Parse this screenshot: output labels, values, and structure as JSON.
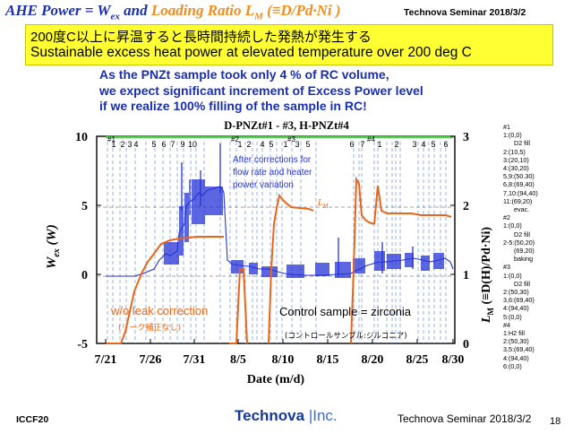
{
  "header": {
    "title_part1": "AHE Power = W",
    "title_sub1": "ex",
    "title_part2": " and ",
    "title_part3": "Loading Ratio L",
    "title_sub2": "M",
    "title_part4": " (≡D/Pd·Ni )",
    "seminar": "Technova Seminar 2018/3/2"
  },
  "banner": {
    "japanese": "200度C以上に昇温すると長時間持続した発熱が発生する",
    "english": "Sustainable excess heat power at elevated temperature over 200 deg C"
  },
  "note": {
    "line1": "As the PNZt sample took only 4 % of RC volume,",
    "line2": "we expect significant increment of Excess Power level",
    "line3": " if we realize 100% filling of the sample in RC!"
  },
  "chart_data": {
    "type": "line",
    "title": "D-PNZt#1 - #3, H-PNZt#4",
    "xlabel": "Date (m/d)",
    "ylabel_left": "Wex (W)",
    "ylabel_right": "LM (≡D(H)/Pd·Ni)",
    "x_ticks": [
      "7/21",
      "7/26",
      "7/31",
      "8/5",
      "8/10",
      "8/15",
      "8/20",
      "8/25",
      "8/30"
    ],
    "y_left_ticks": [
      "10",
      "5",
      "0",
      "-5"
    ],
    "y_left_range": [
      -5,
      10
    ],
    "y_right_ticks": [
      "3",
      "2",
      "1",
      "0"
    ],
    "y_right_range": [
      0,
      3
    ],
    "phase_labels": [
      "#1",
      "#2",
      "#3",
      "#4"
    ],
    "step_labels": [
      "1",
      "2",
      "3",
      "4",
      "5",
      "6",
      "7",
      "9",
      "10",
      "1",
      "2",
      "4",
      "5",
      "1",
      "3",
      "5",
      "6",
      "7",
      "1",
      "2",
      "3",
      "4",
      "5",
      "6"
    ],
    "annotations": {
      "correction_note": "After corrections for flow rate and heater power variation",
      "lm_label": "L",
      "lm_sub": "M",
      "wo_leak": "w/o leak correction",
      "wo_leak_jp": "(リーク補正なし)",
      "control": "Control sample = zirconia",
      "control_jp": "(コントロールサンプル:ジルコニア)"
    },
    "series": [
      {
        "name": "Wex",
        "color": "#2633d6"
      },
      {
        "name": "LM",
        "color": "#e8661a"
      }
    ]
  },
  "legend": [
    "#1",
    "1:(0,0)",
    "D2 fill",
    "2:(10,5)",
    "3:(20,10)",
    "4:(30,20)",
    "5,9:(50.30)",
    "6,8:(69,40)",
    "7,10:(94,40)",
    "11:(69,20)",
    "evac.",
    "#2",
    "1:(0,0)",
    "D2 fill",
    "2-5:(50,20)",
    "(69,20)",
    "baking",
    "#3",
    "1:(0,0)",
    "D2 fill",
    "2:(50,30)",
    "3,6:(69,40)",
    "4:(94,40)",
    "5:(0,0)",
    "#4",
    "1:H2 fill",
    "2:(50,30)",
    "3,5:(69,40)",
    "4:(94,40)",
    "6:(0,0)"
  ],
  "footer": {
    "left": "ICCF20",
    "logo_main": "Technova",
    "logo_sep": "|",
    "logo_inc": "Inc.",
    "right": "Technova Seminar 2018/3/2",
    "page": "18"
  },
  "colors": {
    "wex": "#2633d6",
    "lm": "#e8661a",
    "banner": "#ffff33",
    "title_blue": "#1a2fb0",
    "title_orange": "#f28c1c",
    "phase_line": "#6b8fd6",
    "top_bar": "#4cd14c"
  }
}
